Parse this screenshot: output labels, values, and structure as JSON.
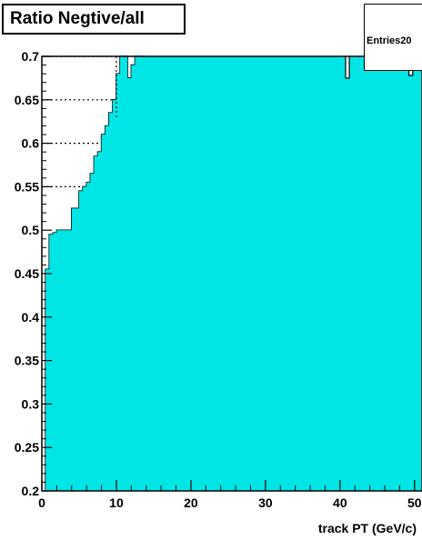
{
  "chart_data": {
    "type": "bar",
    "title": "Ratio Negtive/all",
    "xlabel": "track PT (GeV/c)",
    "ylabel": "",
    "xlim": [
      0,
      50
    ],
    "ylim": [
      0.2,
      0.7
    ],
    "x_ticks": [
      "0",
      "10",
      "20",
      "30",
      "40",
      "50"
    ],
    "y_ticks": [
      "0.2",
      "0.25",
      "0.3",
      "0.35",
      "0.4",
      "0.45",
      "0.5",
      "0.55",
      "0.6",
      "0.65",
      "0.7"
    ],
    "stats_box": {
      "entries_label": "Entries",
      "entries_value": "20"
    },
    "fill_color": "#00e5e5",
    "bin_width": 0.5,
    "bin_edges_start": 0.5,
    "values": [
      0.455,
      0.495,
      0.497,
      0.5,
      0.5,
      0.5,
      0.5,
      0.525,
      0.525,
      0.545,
      0.55,
      0.555,
      0.565,
      0.585,
      0.59,
      0.61,
      0.62,
      0.635,
      0.65,
      0.68,
      0.7,
      0.7,
      0.675,
      0.69,
      0.7,
      0.7
    ],
    "dips": [
      {
        "x": 41,
        "value": 0.675
      },
      {
        "x": 49.5,
        "value": 0.678
      }
    ],
    "grid": "dotted reference lines at 0.55, 0.60, 0.65, 0.70"
  }
}
